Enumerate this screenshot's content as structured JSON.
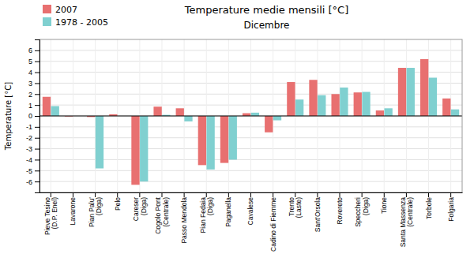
{
  "chart_data": {
    "type": "bar",
    "title": "Temperature medie mensili [°C]",
    "subtitle": "Dicembre",
    "y_label": "Temperature [°C]",
    "categories": [
      "Pieve Tesino\n(D.P. Enel)",
      "Lavarone",
      "Pian Palu'\n(Diga)",
      "Pelo",
      "Careser\n(Diga)",
      "Cogolo Pont\n(Centrale)",
      "Passo Mendola",
      "Pian Fedaia\n(Diga)",
      "Paganella",
      "Cavalese",
      "Cadino di Fiemme",
      "Trento\n(Laste)",
      "Sant'Orsola",
      "Rovereto",
      "Speccheri\n(Diga)",
      "Tione",
      "Santa Massenza\n(Centrale)",
      "Torbole",
      "Folgaria"
    ],
    "series": [
      {
        "name": "2007",
        "color": "#e87070",
        "values": [
          1.75,
          -0.05,
          -0.1,
          0.15,
          -6.3,
          0.85,
          0.7,
          -4.5,
          -4.3,
          0.25,
          -1.5,
          3.1,
          3.3,
          2.0,
          2.15,
          0.5,
          4.4,
          5.2,
          1.6
        ]
      },
      {
        "name": "1978 - 2005",
        "color": "#80d0d0",
        "values": [
          0.9,
          0.0,
          -4.8,
          0.0,
          -6.0,
          0.1,
          -0.5,
          -4.9,
          -4.0,
          0.3,
          -0.4,
          1.5,
          1.9,
          2.6,
          2.2,
          0.7,
          4.4,
          3.5,
          0.6
        ]
      }
    ],
    "ylim": [
      -7,
      7
    ],
    "yticks": [
      -6,
      -5,
      -4,
      -3,
      -2,
      -1,
      0,
      1,
      2,
      3,
      4,
      5,
      6
    ],
    "grid": true,
    "legend": "top-left"
  }
}
